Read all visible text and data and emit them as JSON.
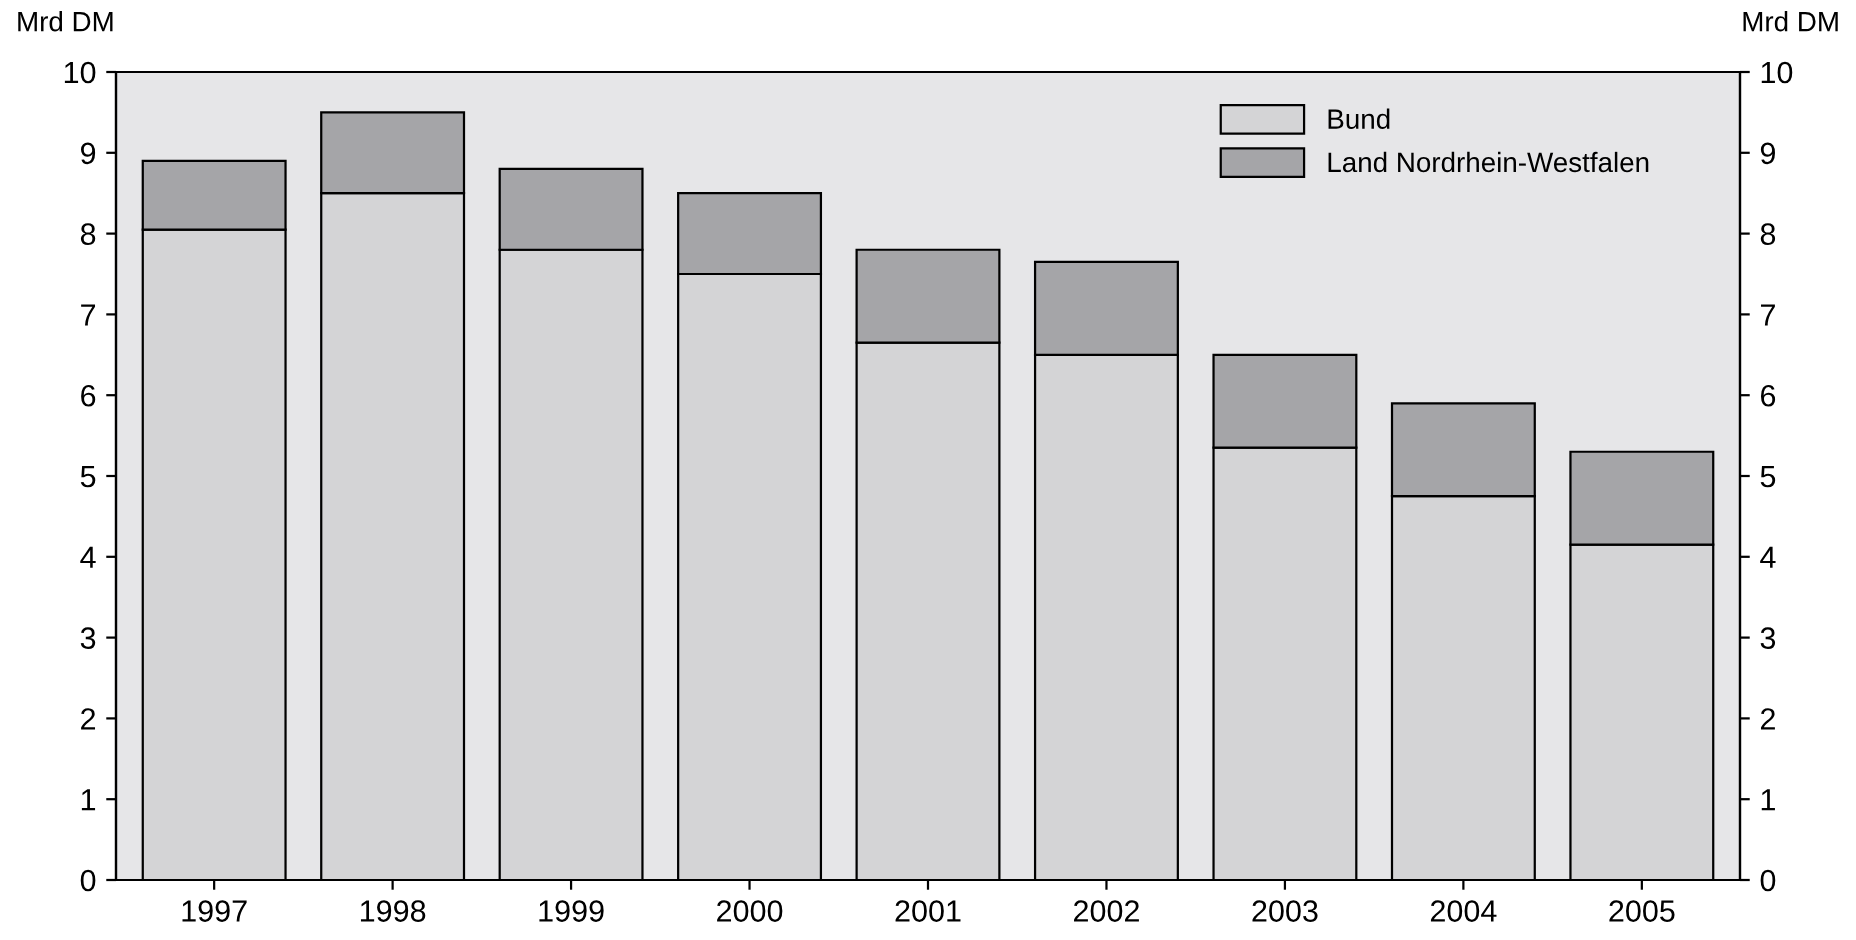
{
  "chart_data": {
    "type": "bar",
    "stacked": true,
    "ylabel": "Mrd DM",
    "y2label": "Mrd DM",
    "categories": [
      "1997",
      "1998",
      "1999",
      "2000",
      "2001",
      "2002",
      "2003",
      "2004",
      "2005"
    ],
    "series": [
      {
        "name": "Bund",
        "color": "#d4d4d6",
        "values": [
          8.05,
          8.5,
          7.8,
          7.5,
          6.65,
          6.5,
          5.35,
          4.75,
          4.15
        ]
      },
      {
        "name": "Land Nordrhein-Westfalen",
        "color": "#a5a5a8",
        "values": [
          0.85,
          1.0,
          1.0,
          1.0,
          1.15,
          1.15,
          1.15,
          1.15,
          1.15
        ]
      }
    ],
    "ylim": [
      0,
      10
    ],
    "yticks": [
      0,
      1,
      2,
      3,
      4,
      5,
      6,
      7,
      8,
      9,
      10
    ],
    "y2lim": [
      0,
      10
    ],
    "y2ticks": [
      0,
      1,
      2,
      3,
      4,
      5,
      6,
      7,
      8,
      9,
      10
    ],
    "legend": "top right",
    "grid": false
  }
}
